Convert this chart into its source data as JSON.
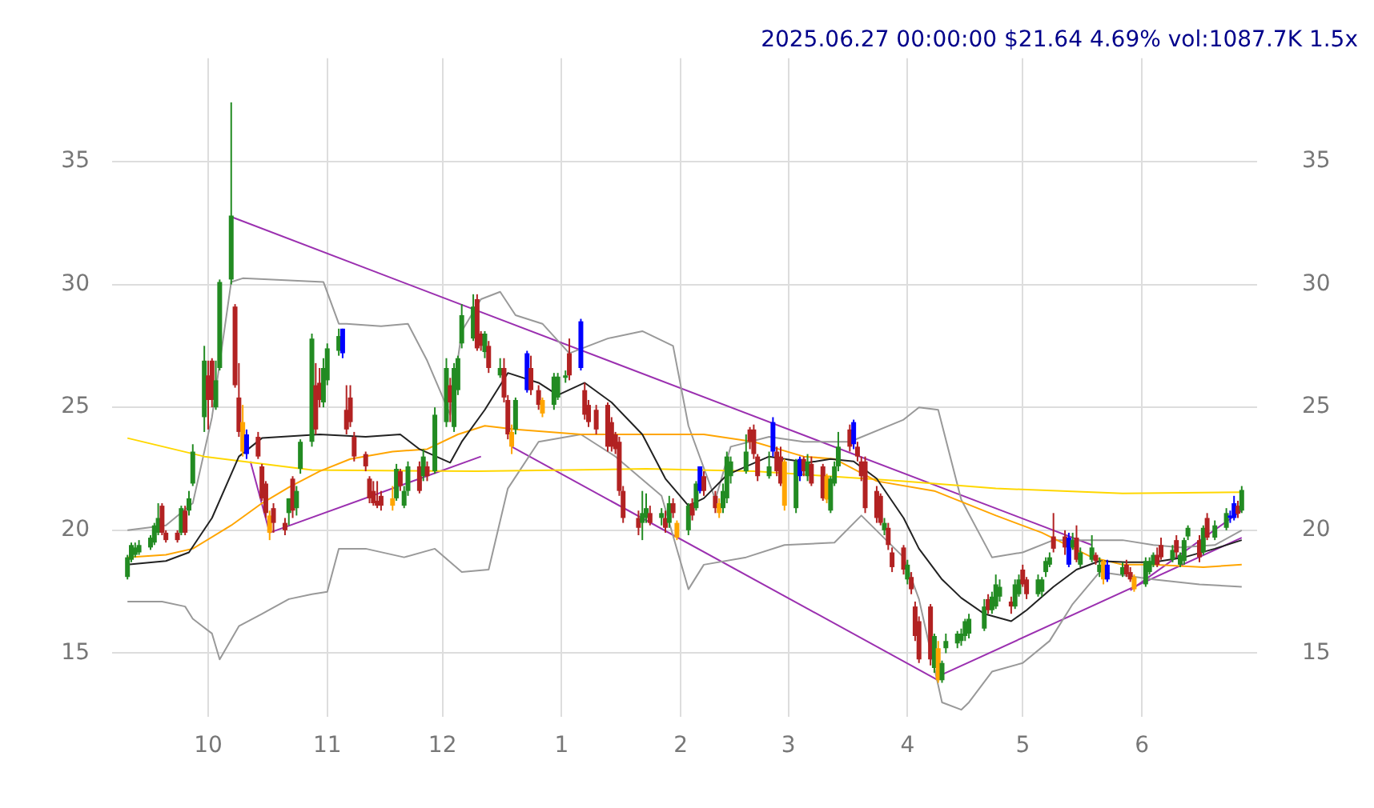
{
  "chart_data": {
    "type": "candlestick",
    "title": "2025.06.27 00:00:00 $21.64 4.69% vol:1087.7K 1.5x",
    "x": [
      "2024-09-10",
      "2024-09-11",
      "2024-09-12",
      "2024-09-13",
      "2024-09-16",
      "2024-09-17",
      "2024-09-18",
      "2024-09-19",
      "2024-09-20",
      "2024-09-23",
      "2024-09-24",
      "2024-09-25",
      "2024-09-26",
      "2024-09-27",
      "2024-09-30",
      "2024-10-01",
      "2024-10-02",
      "2024-10-03",
      "2024-10-04",
      "2024-10-07",
      "2024-10-08",
      "2024-10-09",
      "2024-10-10",
      "2024-10-11",
      "2024-10-14",
      "2024-10-15",
      "2024-10-16",
      "2024-10-17",
      "2024-10-18",
      "2024-10-21",
      "2024-10-22",
      "2024-10-23",
      "2024-10-24",
      "2024-10-25",
      "2024-10-28",
      "2024-10-29",
      "2024-10-30",
      "2024-10-31",
      "2024-11-01",
      "2024-11-04",
      "2024-11-05",
      "2024-11-06",
      "2024-11-07",
      "2024-11-08",
      "2024-11-11",
      "2024-11-12",
      "2024-11-13",
      "2024-11-14",
      "2024-11-15",
      "2024-11-18",
      "2024-11-19",
      "2024-11-20",
      "2024-11-21",
      "2024-11-22",
      "2024-11-25",
      "2024-11-26",
      "2024-11-27",
      "2024-11-29",
      "2024-12-02",
      "2024-12-03",
      "2024-12-04",
      "2024-12-05",
      "2024-12-06",
      "2024-12-09",
      "2024-12-10",
      "2024-12-11",
      "2024-12-12",
      "2024-12-13",
      "2024-12-16",
      "2024-12-17",
      "2024-12-18",
      "2024-12-19",
      "2024-12-20",
      "2024-12-23",
      "2024-12-24",
      "2024-12-26",
      "2024-12-27",
      "2024-12-30",
      "2024-12-31",
      "2025-01-02",
      "2025-01-03",
      "2025-01-06",
      "2025-01-07",
      "2025-01-08",
      "2025-01-10",
      "2025-01-13",
      "2025-01-14",
      "2025-01-15",
      "2025-01-16",
      "2025-01-17",
      "2025-01-21",
      "2025-01-22",
      "2025-01-23",
      "2025-01-24",
      "2025-01-27",
      "2025-01-28",
      "2025-01-29",
      "2025-01-30",
      "2025-01-31",
      "2025-02-03",
      "2025-02-04",
      "2025-02-05",
      "2025-02-06",
      "2025-02-07",
      "2025-02-10",
      "2025-02-11",
      "2025-02-12",
      "2025-02-13",
      "2025-02-14",
      "2025-02-18",
      "2025-02-19",
      "2025-02-20",
      "2025-02-21",
      "2025-02-24",
      "2025-02-25",
      "2025-02-26",
      "2025-02-27",
      "2025-02-28",
      "2025-03-03",
      "2025-03-04",
      "2025-03-05",
      "2025-03-06",
      "2025-03-07",
      "2025-03-10",
      "2025-03-11",
      "2025-03-12",
      "2025-03-13",
      "2025-03-14",
      "2025-03-17",
      "2025-03-18",
      "2025-03-19",
      "2025-03-20",
      "2025-03-21",
      "2025-03-24",
      "2025-03-25",
      "2025-03-26",
      "2025-03-27",
      "2025-03-28",
      "2025-03-31",
      "2025-04-01",
      "2025-04-02",
      "2025-04-03",
      "2025-04-04",
      "2025-04-07",
      "2025-04-08",
      "2025-04-09",
      "2025-04-10",
      "2025-04-11",
      "2025-04-14",
      "2025-04-15",
      "2025-04-16",
      "2025-04-17",
      "2025-04-21",
      "2025-04-22",
      "2025-04-23",
      "2025-04-24",
      "2025-04-25",
      "2025-04-28",
      "2025-04-29",
      "2025-04-30",
      "2025-05-01",
      "2025-05-02",
      "2025-05-05",
      "2025-05-06",
      "2025-05-07",
      "2025-05-08",
      "2025-05-09",
      "2025-05-12",
      "2025-05-13",
      "2025-05-14",
      "2025-05-15",
      "2025-05-16",
      "2025-05-19",
      "2025-05-20",
      "2025-05-21",
      "2025-05-22",
      "2025-05-23",
      "2025-05-27",
      "2025-05-28",
      "2025-05-29",
      "2025-05-30",
      "2025-06-02",
      "2025-06-03",
      "2025-06-04",
      "2025-06-05",
      "2025-06-06",
      "2025-06-09",
      "2025-06-10",
      "2025-06-11",
      "2025-06-12",
      "2025-06-13",
      "2025-06-16",
      "2025-06-17",
      "2025-06-18",
      "2025-06-20",
      "2025-06-23",
      "2025-06-24",
      "2025-06-25",
      "2025-06-26",
      "2025-06-27"
    ],
    "ohlc": [
      [
        18.1,
        19.0,
        18.0,
        18.9
      ],
      [
        18.8,
        19.5,
        18.7,
        19.4
      ],
      [
        19.0,
        19.5,
        18.9,
        19.3
      ],
      [
        19.1,
        19.6,
        19.0,
        19.4
      ],
      [
        19.3,
        19.8,
        19.2,
        19.7
      ],
      [
        19.5,
        20.3,
        19.4,
        20.2
      ],
      [
        19.9,
        21.1,
        19.8,
        20.5
      ],
      [
        21.0,
        21.1,
        19.8,
        19.9
      ],
      [
        19.9,
        20.0,
        19.5,
        19.6
      ],
      [
        19.9,
        20.0,
        19.5,
        19.6
      ],
      [
        19.9,
        21.0,
        19.8,
        20.9
      ],
      [
        20.8,
        21.0,
        19.8,
        19.9
      ],
      [
        20.8,
        21.6,
        20.6,
        21.3
      ],
      [
        21.9,
        23.5,
        21.8,
        23.2
      ],
      [
        24.6,
        27.5,
        24.0,
        26.9
      ],
      [
        26.3,
        26.9,
        24.1,
        25.3
      ],
      [
        26.9,
        27.0,
        25.0,
        25.3
      ],
      [
        25.0,
        26.9,
        24.9,
        26.1
      ],
      [
        26.6,
        30.2,
        26.5,
        30.1
      ],
      [
        30.2,
        37.4,
        30.0,
        32.8
      ],
      [
        29.1,
        29.2,
        25.8,
        25.9
      ],
      [
        25.4,
        26.8,
        23.8,
        24.0
      ],
      [
        24.4,
        25.1,
        23.0,
        23.2
      ],
      [
        23.1,
        24.1,
        22.9,
        23.9
      ],
      [
        23.8,
        24.0,
        22.9,
        23.0
      ],
      [
        22.6,
        22.7,
        21.2,
        21.3
      ],
      [
        21.9,
        22.0,
        20.5,
        20.7
      ],
      [
        20.6,
        20.8,
        19.6,
        19.9
      ],
      [
        20.9,
        21.1,
        19.9,
        20.3
      ],
      [
        20.3,
        20.5,
        19.8,
        20.0
      ],
      [
        20.7,
        21.3,
        20.2,
        21.3
      ],
      [
        22.1,
        22.2,
        20.5,
        20.8
      ],
      [
        20.9,
        21.8,
        20.6,
        21.6
      ],
      [
        22.5,
        23.7,
        22.3,
        23.6
      ],
      [
        23.6,
        28.0,
        23.4,
        27.8
      ],
      [
        25.9,
        26.8,
        23.9,
        24.1
      ],
      [
        26.0,
        26.6,
        25.0,
        25.3
      ],
      [
        25.2,
        27.0,
        25.0,
        26.6
      ],
      [
        26.1,
        27.6,
        25.9,
        27.4
      ],
      [
        27.3,
        28.2,
        27.1,
        27.9
      ],
      [
        27.2,
        28.2,
        27.0,
        28.2
      ],
      [
        24.9,
        25.9,
        23.9,
        24.1
      ],
      [
        25.4,
        25.9,
        24.2,
        24.4
      ],
      [
        23.8,
        24.0,
        22.8,
        23.0
      ],
      [
        23.1,
        23.2,
        22.4,
        22.6
      ],
      [
        22.1,
        22.2,
        21.1,
        21.3
      ],
      [
        21.6,
        22.0,
        21.0,
        21.1
      ],
      [
        21.2,
        22.0,
        20.9,
        21.0
      ],
      [
        21.4,
        21.6,
        20.8,
        21.0
      ],
      [
        21.3,
        21.8,
        20.8,
        21.0
      ],
      [
        21.3,
        22.7,
        21.2,
        22.5
      ],
      [
        22.4,
        22.5,
        21.6,
        21.8
      ],
      [
        21.0,
        21.8,
        20.9,
        21.6
      ],
      [
        21.6,
        22.8,
        21.4,
        22.6
      ],
      [
        22.6,
        22.8,
        21.5,
        21.6
      ],
      [
        22.2,
        23.3,
        22.0,
        23.0
      ],
      [
        22.6,
        22.8,
        22.0,
        22.2
      ],
      [
        22.4,
        25.0,
        22.3,
        24.7
      ],
      [
        24.4,
        27.0,
        24.2,
        26.6
      ],
      [
        25.9,
        26.2,
        24.4,
        25.2
      ],
      [
        24.2,
        26.8,
        24.0,
        26.6
      ],
      [
        25.7,
        27.1,
        25.5,
        27.0
      ],
      [
        27.6,
        29.2,
        27.4,
        28.75
      ],
      [
        27.8,
        29.6,
        27.7,
        29.1
      ],
      [
        29.4,
        29.6,
        27.3,
        27.4
      ],
      [
        28.0,
        28.1,
        27.3,
        27.5
      ],
      [
        27.25,
        28.1,
        27.0,
        28.0
      ],
      [
        27.5,
        27.7,
        26.4,
        26.6
      ],
      [
        26.3,
        27.0,
        26.2,
        26.6
      ],
      [
        26.6,
        27.0,
        25.2,
        25.4
      ],
      [
        25.3,
        25.5,
        23.7,
        23.9
      ],
      [
        24.0,
        24.3,
        23.1,
        23.4
      ],
      [
        24.1,
        25.4,
        23.9,
        25.3
      ],
      [
        25.7,
        27.3,
        25.6,
        27.2
      ],
      [
        26.6,
        27.1,
        25.5,
        25.7
      ],
      [
        25.7,
        25.9,
        24.9,
        25.1
      ],
      [
        25.3,
        25.4,
        24.6,
        24.75
      ],
      [
        25.1,
        26.4,
        24.9,
        26.25
      ],
      [
        25.4,
        26.4,
        25.3,
        26.25
      ],
      [
        26.2,
        26.5,
        26.0,
        26.3
      ],
      [
        27.2,
        27.8,
        26.1,
        26.3
      ],
      [
        26.6,
        28.6,
        26.5,
        28.5
      ],
      [
        25.7,
        26.0,
        24.5,
        24.7
      ],
      [
        25.1,
        25.3,
        24.2,
        24.4
      ],
      [
        24.9,
        25.1,
        23.9,
        24.1
      ],
      [
        25.1,
        25.2,
        23.2,
        23.4
      ],
      [
        24.4,
        24.6,
        23.2,
        23.4
      ],
      [
        23.9,
        24.0,
        23.1,
        23.3
      ],
      [
        23.6,
        23.8,
        21.4,
        21.6
      ],
      [
        21.6,
        21.8,
        20.3,
        20.5
      ],
      [
        20.5,
        20.8,
        19.8,
        20.1
      ],
      [
        20.3,
        21.6,
        19.6,
        20.7
      ],
      [
        20.5,
        21.5,
        20.3,
        20.9
      ],
      [
        20.7,
        21.0,
        20.2,
        20.3
      ],
      [
        20.5,
        20.9,
        20.2,
        20.7
      ],
      [
        20.5,
        20.8,
        19.9,
        20.1
      ],
      [
        20.3,
        21.4,
        20.1,
        21.1
      ],
      [
        21.1,
        21.3,
        20.5,
        20.7
      ],
      [
        20.3,
        20.4,
        19.6,
        19.7
      ],
      [
        20.0,
        21.1,
        19.8,
        21.0
      ],
      [
        21.1,
        21.3,
        20.4,
        20.6
      ],
      [
        20.9,
        22.0,
        20.8,
        21.9
      ],
      [
        21.6,
        22.6,
        21.5,
        22.6
      ],
      [
        22.2,
        22.4,
        21.4,
        21.6
      ],
      [
        21.4,
        21.6,
        20.7,
        20.9
      ],
      [
        21.1,
        21.3,
        20.5,
        20.7
      ],
      [
        20.9,
        21.9,
        20.7,
        21.6
      ],
      [
        21.3,
        23.2,
        21.1,
        23.0
      ],
      [
        22.2,
        23.0,
        21.9,
        22.8
      ],
      [
        22.4,
        23.9,
        22.3,
        23.2
      ],
      [
        24.1,
        24.2,
        23.3,
        23.6
      ],
      [
        24.1,
        24.3,
        22.9,
        23.1
      ],
      [
        23.0,
        23.1,
        22.0,
        22.2
      ],
      [
        22.2,
        23.2,
        22.1,
        22.6
      ],
      [
        23.2,
        24.6,
        23.0,
        24.4
      ],
      [
        23.2,
        23.4,
        22.2,
        22.4
      ],
      [
        23.0,
        23.4,
        21.8,
        21.9
      ],
      [
        22.8,
        22.9,
        20.8,
        21.0
      ],
      [
        20.9,
        22.9,
        20.7,
        22.8
      ],
      [
        22.2,
        23.0,
        22.0,
        22.9
      ],
      [
        22.9,
        23.0,
        22.2,
        22.4
      ],
      [
        22.2,
        23.1,
        22.0,
        22.8
      ],
      [
        22.7,
        23.0,
        21.8,
        21.9
      ],
      [
        22.6,
        22.7,
        21.2,
        21.3
      ],
      [
        22.2,
        22.3,
        21.1,
        21.25
      ],
      [
        20.8,
        22.2,
        20.7,
        22.1
      ],
      [
        21.9,
        22.8,
        21.8,
        22.6
      ],
      [
        22.6,
        24.0,
        22.4,
        23.4
      ],
      [
        24.1,
        24.3,
        23.2,
        23.4
      ],
      [
        23.5,
        24.5,
        23.3,
        24.4
      ],
      [
        23.4,
        23.6,
        22.8,
        23.0
      ],
      [
        22.8,
        23.0,
        22.0,
        22.2
      ],
      [
        22.8,
        23.0,
        20.7,
        20.9
      ],
      [
        21.6,
        21.8,
        20.3,
        20.5
      ],
      [
        21.4,
        21.5,
        20.2,
        20.3
      ],
      [
        20.0,
        20.5,
        19.8,
        20.3
      ],
      [
        20.1,
        20.3,
        19.2,
        19.4
      ],
      [
        19.1,
        19.3,
        18.3,
        18.5
      ],
      [
        19.3,
        19.4,
        18.2,
        18.4
      ],
      [
        18.0,
        18.8,
        17.8,
        18.6
      ],
      [
        18.1,
        18.3,
        17.4,
        17.6
      ],
      [
        16.9,
        17.1,
        15.5,
        15.7
      ],
      [
        16.3,
        16.5,
        14.6,
        14.75
      ],
      [
        16.9,
        17.0,
        14.5,
        14.75
      ],
      [
        14.4,
        15.8,
        14.2,
        15.7
      ],
      [
        15.2,
        15.5,
        13.8,
        13.9
      ],
      [
        13.9,
        14.7,
        13.8,
        14.6
      ],
      [
        15.2,
        15.8,
        15.0,
        15.5
      ],
      [
        15.4,
        15.9,
        15.2,
        15.8
      ],
      [
        15.5,
        16.0,
        15.3,
        15.8
      ],
      [
        15.7,
        16.4,
        15.5,
        16.3
      ],
      [
        15.8,
        16.6,
        15.6,
        16.4
      ],
      [
        16.0,
        17.2,
        15.9,
        16.9
      ],
      [
        17.2,
        17.4,
        16.6,
        16.75
      ],
      [
        16.75,
        17.5,
        16.6,
        17.3
      ],
      [
        16.9,
        18.2,
        16.8,
        17.8
      ],
      [
        17.3,
        18.0,
        17.1,
        17.7
      ],
      [
        17.1,
        17.3,
        16.6,
        16.9
      ],
      [
        16.9,
        18.0,
        16.8,
        17.8
      ],
      [
        17.4,
        18.2,
        17.3,
        18.0
      ],
      [
        18.4,
        18.6,
        17.7,
        17.8
      ],
      [
        18.0,
        18.1,
        17.2,
        17.4
      ],
      [
        17.4,
        18.2,
        17.3,
        18.0
      ],
      [
        17.5,
        18.1,
        17.3,
        18.0
      ],
      [
        18.3,
        18.9,
        18.1,
        18.75
      ],
      [
        18.6,
        19.1,
        18.5,
        18.9
      ],
      [
        19.75,
        20.7,
        19.1,
        19.25
      ],
      [
        19.75,
        20.0,
        19.0,
        19.3
      ],
      [
        18.6,
        19.9,
        18.5,
        19.7
      ],
      [
        19.3,
        19.9,
        19.2,
        19.6
      ],
      [
        19.7,
        20.2,
        18.7,
        18.8
      ],
      [
        18.6,
        19.3,
        18.5,
        19.1
      ],
      [
        18.8,
        19.8,
        18.7,
        19.3
      ],
      [
        19.0,
        19.1,
        18.6,
        18.75
      ],
      [
        18.3,
        18.9,
        18.1,
        18.6
      ],
      [
        18.75,
        18.8,
        17.8,
        18.0
      ],
      [
        18.0,
        18.8,
        17.9,
        18.6
      ],
      [
        18.2,
        18.7,
        18.1,
        18.5
      ],
      [
        18.6,
        18.8,
        18.1,
        18.2
      ],
      [
        18.3,
        18.5,
        17.9,
        18.0
      ],
      [
        18.1,
        18.2,
        17.5,
        17.6
      ],
      [
        17.8,
        18.9,
        17.7,
        18.75
      ],
      [
        18.3,
        18.9,
        18.2,
        18.75
      ],
      [
        18.6,
        19.1,
        18.5,
        19.0
      ],
      [
        19.0,
        19.3,
        18.5,
        18.6
      ],
      [
        19.4,
        19.7,
        18.8,
        18.9
      ],
      [
        18.8,
        19.4,
        18.7,
        19.2
      ],
      [
        19.6,
        19.8,
        18.9,
        19.1
      ],
      [
        18.6,
        19.1,
        18.5,
        19.0
      ],
      [
        18.75,
        19.7,
        18.6,
        19.6
      ],
      [
        19.75,
        20.2,
        19.6,
        20.1
      ],
      [
        19.6,
        19.8,
        18.7,
        18.9
      ],
      [
        19.1,
        20.2,
        19.0,
        20.1
      ],
      [
        20.5,
        20.7,
        19.6,
        19.7
      ],
      [
        19.7,
        20.4,
        19.6,
        20.2
      ],
      [
        20.1,
        20.9,
        20.0,
        20.7
      ],
      [
        20.5,
        20.8,
        20.3,
        20.6
      ],
      [
        20.5,
        21.4,
        20.4,
        21.1
      ],
      [
        21.0,
        21.2,
        20.5,
        20.67
      ],
      [
        20.8,
        21.8,
        20.7,
        21.64
      ]
    ],
    "colors": [
      "#228b22",
      "#228b22",
      "#228b22",
      "#228b22",
      "#228b22",
      "#228b22",
      "#228b22",
      "#b22222",
      "#b22222",
      "#b22222",
      "#228b22",
      "#b22222",
      "#228b22",
      "#228b22",
      "#228b22",
      "#b22222",
      "#b22222",
      "#228b22",
      "#228b22",
      "#228b22",
      "#b22222",
      "#b22222",
      "#ffa500",
      "#0000ff",
      "#b22222",
      "#b22222",
      "#b22222",
      "#ffa500",
      "#b22222",
      "#b22222",
      "#228b22",
      "#b22222",
      "#228b22",
      "#228b22",
      "#228b22",
      "#b22222",
      "#b22222",
      "#228b22",
      "#228b22",
      "#228b22",
      "#0000ff",
      "#b22222",
      "#b22222",
      "#b22222",
      "#b22222",
      "#b22222",
      "#b22222",
      "#b22222",
      "#b22222",
      "#ffa500",
      "#228b22",
      "#b22222",
      "#228b22",
      "#228b22",
      "#b22222",
      "#228b22",
      "#b22222",
      "#228b22",
      "#228b22",
      "#b22222",
      "#228b22",
      "#228b22",
      "#228b22",
      "#228b22",
      "#b22222",
      "#b22222",
      "#228b22",
      "#b22222",
      "#228b22",
      "#b22222",
      "#b22222",
      "#ffa500",
      "#228b22",
      "#0000ff",
      "#b22222",
      "#b22222",
      "#ffa500",
      "#228b22",
      "#228b22",
      "#228b22",
      "#b22222",
      "#0000ff",
      "#b22222",
      "#b22222",
      "#b22222",
      "#b22222",
      "#b22222",
      "#b22222",
      "#b22222",
      "#b22222",
      "#b22222",
      "#228b22",
      "#228b22",
      "#b22222",
      "#228b22",
      "#b22222",
      "#228b22",
      "#b22222",
      "#ffa500",
      "#228b22",
      "#b22222",
      "#228b22",
      "#0000ff",
      "#b22222",
      "#b22222",
      "#ffa500",
      "#228b22",
      "#228b22",
      "#228b22",
      "#228b22",
      "#b22222",
      "#b22222",
      "#b22222",
      "#228b22",
      "#0000ff",
      "#b22222",
      "#b22222",
      "#ffa500",
      "#228b22",
      "#0000ff",
      "#b22222",
      "#228b22",
      "#b22222",
      "#b22222",
      "#ffa500",
      "#228b22",
      "#228b22",
      "#228b22",
      "#b22222",
      "#0000ff",
      "#b22222",
      "#b22222",
      "#b22222",
      "#b22222",
      "#b22222",
      "#228b22",
      "#b22222",
      "#b22222",
      "#b22222",
      "#228b22",
      "#b22222",
      "#b22222",
      "#b22222",
      "#b22222",
      "#228b22",
      "#ffa500",
      "#228b22",
      "#228b22",
      "#228b22",
      "#228b22",
      "#228b22",
      "#228b22",
      "#228b22",
      "#b22222",
      "#228b22",
      "#228b22",
      "#228b22",
      "#b22222",
      "#228b22",
      "#228b22",
      "#b22222",
      "#b22222",
      "#228b22",
      "#228b22",
      "#228b22",
      "#228b22",
      "#b22222",
      "#b22222",
      "#0000ff",
      "#228b22",
      "#b22222",
      "#228b22",
      "#228b22",
      "#b22222",
      "#228b22",
      "#ffa500",
      "#0000ff",
      "#228b22",
      "#b22222",
      "#b22222",
      "#ffa500",
      "#228b22",
      "#228b22",
      "#228b22",
      "#b22222",
      "#b22222",
      "#228b22",
      "#b22222",
      "#228b22",
      "#228b22",
      "#228b22",
      "#b22222",
      "#228b22",
      "#b22222",
      "#228b22",
      "#228b22",
      "#0000ff",
      "#0000ff",
      "#b22222",
      "#228b22"
    ],
    "series": [
      {
        "type": "line",
        "color": "#222222",
        "x": [
          "2024-09-10",
          "2024-09-20",
          "2024-09-26",
          "2024-10-02",
          "2024-10-09",
          "2024-10-15",
          "2024-10-30",
          "2024-11-11",
          "2024-11-20",
          "2024-11-25",
          "2024-12-03",
          "2024-12-06",
          "2024-12-12",
          "2024-12-18",
          "2024-12-26",
          "2024-12-31",
          "2025-01-07",
          "2025-01-14",
          "2025-01-22",
          "2025-01-28",
          "2025-02-03",
          "2025-02-07",
          "2025-02-13",
          "2025-02-24",
          "2025-03-06",
          "2025-03-12",
          "2025-03-18",
          "2025-03-24",
          "2025-03-31",
          "2025-04-04",
          "2025-04-10",
          "2025-04-15",
          "2025-04-21",
          "2025-04-28",
          "2025-05-02",
          "2025-05-09",
          "2025-05-15",
          "2025-05-21",
          "2025-05-28",
          "2025-06-04",
          "2025-06-12",
          "2025-06-20",
          "2025-06-27"
        ],
        "values": [
          18.6,
          18.75,
          19.1,
          20.5,
          23.0,
          23.75,
          23.9,
          23.8,
          23.9,
          23.3,
          22.75,
          23.6,
          24.9,
          26.4,
          26.0,
          25.5,
          26.0,
          25.2,
          23.9,
          22.1,
          21.0,
          21.3,
          22.25,
          23.0,
          22.75,
          22.9,
          22.8,
          22.1,
          20.5,
          19.25,
          18.0,
          17.25,
          16.6,
          16.3,
          16.75,
          17.7,
          18.4,
          18.75,
          18.7,
          18.7,
          18.9,
          19.25,
          19.6
        ]
      },
      {
        "type": "line",
        "color": "#ffa500",
        "x": [
          "2024-09-10",
          "2024-09-20",
          "2024-09-27",
          "2024-10-07",
          "2024-10-15",
          "2024-10-22",
          "2024-10-30",
          "2024-11-07",
          "2024-11-18",
          "2024-11-27",
          "2024-12-05",
          "2024-12-12",
          "2024-12-20",
          "2025-01-06",
          "2025-01-23",
          "2025-02-07",
          "2025-02-20",
          "2025-03-05",
          "2025-03-13",
          "2025-03-24",
          "2025-04-08",
          "2025-04-24",
          "2025-05-06",
          "2025-05-19",
          "2025-05-27",
          "2025-06-04",
          "2025-06-17",
          "2025-06-27"
        ],
        "values": [
          18.9,
          19.0,
          19.25,
          20.2,
          21.1,
          21.75,
          22.4,
          22.9,
          23.2,
          23.3,
          23.9,
          24.25,
          24.1,
          23.9,
          23.9,
          23.9,
          23.6,
          23.0,
          22.9,
          22.0,
          21.6,
          20.6,
          19.9,
          18.9,
          18.6,
          18.6,
          18.5,
          18.6
        ]
      },
      {
        "type": "line",
        "color": "#ffd700",
        "x": [
          "2024-09-10",
          "2024-09-30",
          "2024-10-28",
          "2024-12-10",
          "2025-01-23",
          "2025-02-20",
          "2025-03-31",
          "2025-04-24",
          "2025-05-27",
          "2025-06-27"
        ],
        "values": [
          23.75,
          23.0,
          22.45,
          22.4,
          22.5,
          22.4,
          22.0,
          21.7,
          21.5,
          21.55
        ]
      },
      {
        "type": "line",
        "color": "#999999",
        "x": [
          "2024-09-10",
          "2024-09-20",
          "2024-09-27",
          "2024-10-02",
          "2024-10-07",
          "2024-10-10",
          "2024-10-31",
          "2024-11-04",
          "2024-11-06",
          "2024-11-15",
          "2024-11-22",
          "2024-11-27",
          "2024-12-03",
          "2024-12-06",
          "2024-12-11",
          "2024-12-16",
          "2024-12-20",
          "2024-12-27",
          "2025-01-03",
          "2025-01-13",
          "2025-01-22",
          "2025-01-30",
          "2025-02-03",
          "2025-02-10",
          "2025-02-14",
          "2025-02-24",
          "2025-03-05",
          "2025-03-17",
          "2025-03-31",
          "2025-04-04",
          "2025-04-09",
          "2025-04-15",
          "2025-04-23",
          "2025-05-01",
          "2025-05-09",
          "2025-05-19",
          "2025-05-27",
          "2025-06-04",
          "2025-06-11",
          "2025-06-20",
          "2025-06-27"
        ],
        "values": [
          20.0,
          20.2,
          21.1,
          24.6,
          30.1,
          30.25,
          30.1,
          28.4,
          28.4,
          28.3,
          28.4,
          26.9,
          24.7,
          28.1,
          29.4,
          29.7,
          28.75,
          28.4,
          27.2,
          27.8,
          28.1,
          27.5,
          24.25,
          21.25,
          23.4,
          23.8,
          23.6,
          23.6,
          24.5,
          25.0,
          24.9,
          21.25,
          18.9,
          19.1,
          19.6,
          19.6,
          19.6,
          19.4,
          19.3,
          19.4,
          20.0
        ]
      },
      {
        "type": "line",
        "color": "#999999",
        "x": [
          "2024-09-10",
          "2024-09-19",
          "2024-09-25",
          "2024-09-27",
          "2024-10-02",
          "2024-10-04",
          "2024-10-09",
          "2024-10-15",
          "2024-10-22",
          "2024-10-28",
          "2024-11-01",
          "2024-11-04",
          "2024-11-11",
          "2024-11-21",
          "2024-11-29",
          "2024-12-06",
          "2024-12-13",
          "2024-12-18",
          "2024-12-26",
          "2025-01-06",
          "2025-01-15",
          "2025-01-27",
          "2025-02-03",
          "2025-02-07",
          "2025-02-18",
          "2025-02-28",
          "2025-03-13",
          "2025-03-20",
          "2025-03-31",
          "2025-04-04",
          "2025-04-10",
          "2025-04-15",
          "2025-04-17",
          "2025-04-23",
          "2025-05-01",
          "2025-05-08",
          "2025-05-14",
          "2025-05-21",
          "2025-06-04",
          "2025-06-16",
          "2025-06-27"
        ],
        "values": [
          17.1,
          17.1,
          16.9,
          16.4,
          15.8,
          14.75,
          16.1,
          16.6,
          17.2,
          17.4,
          17.5,
          19.25,
          19.25,
          18.9,
          19.25,
          18.3,
          18.4,
          21.7,
          23.6,
          23.9,
          23.0,
          21.4,
          17.6,
          18.6,
          18.9,
          19.4,
          19.5,
          20.6,
          18.9,
          17.2,
          13.0,
          12.7,
          13.0,
          14.25,
          14.6,
          15.5,
          17.0,
          18.3,
          18.0,
          17.8,
          17.7
        ]
      },
      {
        "type": "line",
        "color": "#9b30b0",
        "x": [
          "2024-10-07",
          "2025-05-19"
        ],
        "values": [
          32.75,
          19.4
        ]
      },
      {
        "type": "line",
        "color": "#9b30b0",
        "x": [
          "2024-10-12",
          "2024-10-17"
        ],
        "values": [
          22.8,
          19.9
        ]
      },
      {
        "type": "line",
        "color": "#9b30b0",
        "x": [
          "2024-10-17",
          "2024-12-11"
        ],
        "values": [
          19.9,
          23.0
        ]
      },
      {
        "type": "line",
        "color": "#9b30b0",
        "x": [
          "2024-12-19",
          "2025-04-09"
        ],
        "values": [
          23.4,
          13.9
        ]
      },
      {
        "type": "line",
        "color": "#9b30b0",
        "x": [
          "2025-04-09",
          "2025-06-27"
        ],
        "values": [
          14.06,
          19.7
        ]
      },
      {
        "type": "line",
        "color": "#9b30b0",
        "x": [
          "2025-05-29",
          "2025-06-27"
        ],
        "values": [
          17.56,
          20.8
        ]
      }
    ],
    "xlim": [
      "2024-09-06",
      "2025-07-01"
    ],
    "xticks": [
      {
        "value": "2024-10-01",
        "label": "10"
      },
      {
        "value": "2024-11-01",
        "label": "11"
      },
      {
        "value": "2024-12-01",
        "label": "12"
      },
      {
        "value": "2025-01-01",
        "label": "1"
      },
      {
        "value": "2025-02-01",
        "label": "2"
      },
      {
        "value": "2025-03-01",
        "label": "3"
      },
      {
        "value": "2025-04-01",
        "label": "4"
      },
      {
        "value": "2025-05-01",
        "label": "5"
      },
      {
        "value": "2025-06-01",
        "label": "6"
      }
    ],
    "ylim": [
      12.4,
      39.2
    ],
    "yticks": [
      15,
      20,
      25,
      30,
      35
    ],
    "y2lim": [
      12.4,
      39.2
    ],
    "y2ticks": [
      15,
      20,
      25,
      30,
      35
    ],
    "grid": true
  }
}
